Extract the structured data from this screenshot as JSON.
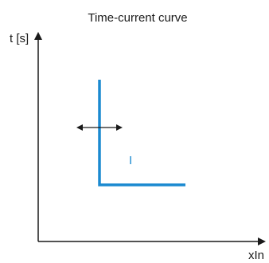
{
  "diagram": {
    "title": "Time-current curve",
    "y_axis_label": "t [s]",
    "x_axis_label": "xIn",
    "curve_label": "I",
    "colors": {
      "curve": "#1b8ad0",
      "axes": "#1a1a1a",
      "text": "#1a1a1a"
    },
    "icons": {
      "adjust_arrows": "double-headed horizontal arrow (adjustable threshold)"
    }
  }
}
